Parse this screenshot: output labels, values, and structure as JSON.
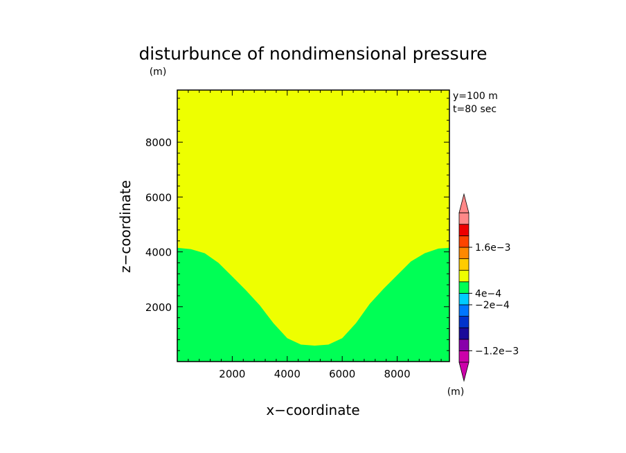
{
  "chart_data": {
    "type": "heatmap",
    "title": "disturbunce of nondimensional pressure",
    "title_unit": "(m)",
    "xlabel": "x−coordinate",
    "ylabel": "z−coordinate",
    "xlim": [
      0,
      9900
    ],
    "ylim": [
      0,
      9900
    ],
    "x_ticks": [
      2000,
      4000,
      6000,
      8000
    ],
    "x_tick_labels": [
      "2000",
      "4000",
      "6000",
      "8000"
    ],
    "y_ticks": [
      2000,
      4000,
      6000,
      8000
    ],
    "y_tick_labels": [
      "2000",
      "4000",
      "6000",
      "8000"
    ],
    "annotations": [
      "y=100 m",
      "t=80 sec"
    ],
    "regions": {
      "upper_color": "#eeff00",
      "lower_color": "#00ff55",
      "boundary": {
        "x": [
          0,
          500,
          1000,
          1500,
          2000,
          2500,
          3000,
          3500,
          4000,
          4500,
          5000,
          5500,
          6000,
          6500,
          7000,
          7500,
          8000,
          8500,
          9000,
          9500,
          9900
        ],
        "z": [
          4150,
          4100,
          3950,
          3600,
          3100,
          2600,
          2050,
          1400,
          850,
          620,
          580,
          620,
          850,
          1400,
          2100,
          2650,
          3150,
          3650,
          3950,
          4120,
          4150
        ]
      }
    },
    "colorbar": {
      "unit": "(m)",
      "colors": [
        "#cc00aa",
        "#8800aa",
        "#1a0a9a",
        "#0033cc",
        "#0077ff",
        "#00ccff",
        "#00ff55",
        "#eeff00",
        "#ffcc00",
        "#ff8800",
        "#ff4400",
        "#ee0000",
        "#ff8888"
      ],
      "labels": [
        "1.6e−3",
        "4e−4",
        "−2e−4",
        "−1.2e−3"
      ],
      "label_after_box": [
        10,
        6,
        5,
        1
      ]
    }
  }
}
